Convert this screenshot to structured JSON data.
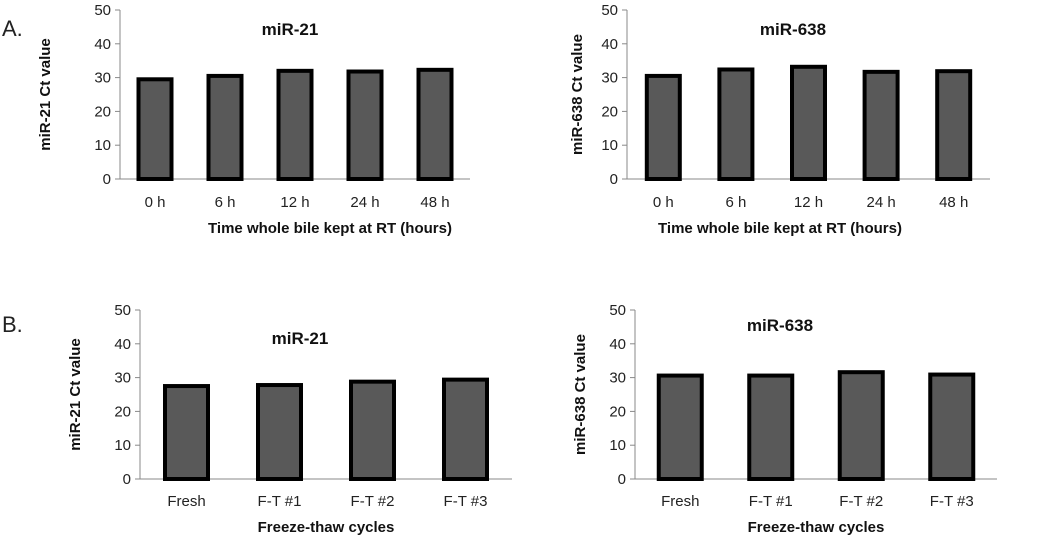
{
  "panel_labels": [
    "A.",
    "B."
  ],
  "chart_data": [
    {
      "type": "bar",
      "title": "miR-21",
      "categories": [
        "0 h",
        "6 h",
        "12 h",
        "24 h",
        "48 h"
      ],
      "values": [
        29.5,
        30.5,
        32,
        31.8,
        32.3
      ],
      "xlabel": "Time whole bile kept at RT (hours)",
      "ylabel": "miR-21 Ct value",
      "ylim": [
        0,
        50
      ],
      "yticks": [
        0,
        10,
        20,
        30,
        40,
        50
      ],
      "grid": false,
      "legend": "none",
      "bar_fill": "#595959",
      "bar_edge": "#000000"
    },
    {
      "type": "bar",
      "title": "miR-638",
      "categories": [
        "0 h",
        "6 h",
        "12 h",
        "24 h",
        "48 h"
      ],
      "values": [
        30.5,
        32.4,
        33.2,
        31.7,
        31.9
      ],
      "xlabel": "Time whole bile kept at RT (hours)",
      "ylabel": "miR-638 Ct value",
      "ylim": [
        0,
        50
      ],
      "yticks": [
        0,
        10,
        20,
        30,
        40,
        50
      ],
      "grid": false,
      "legend": "none",
      "bar_fill": "#595959",
      "bar_edge": "#000000"
    },
    {
      "type": "bar",
      "title": "miR-21",
      "categories": [
        "Fresh",
        "F-T #1",
        "F-T #2",
        "F-T #3"
      ],
      "values": [
        27.5,
        27.8,
        28.8,
        29.4
      ],
      "xlabel": "Freeze-thaw cycles",
      "ylabel": "miR-21 Ct value",
      "ylim": [
        0,
        50
      ],
      "yticks": [
        0,
        10,
        20,
        30,
        40,
        50
      ],
      "grid": false,
      "legend": "none",
      "bar_fill": "#595959",
      "bar_edge": "#000000"
    },
    {
      "type": "bar",
      "title": "miR-638",
      "categories": [
        "Fresh",
        "F-T #1",
        "F-T #2",
        "F-T #3"
      ],
      "values": [
        30.6,
        30.6,
        31.6,
        30.9
      ],
      "xlabel": "Freeze-thaw cycles",
      "ylabel": "miR-638 Ct value",
      "ylim": [
        0,
        50
      ],
      "yticks": [
        0,
        10,
        20,
        30,
        40,
        50
      ],
      "grid": false,
      "legend": "none",
      "bar_fill": "#595959",
      "bar_edge": "#000000"
    }
  ]
}
